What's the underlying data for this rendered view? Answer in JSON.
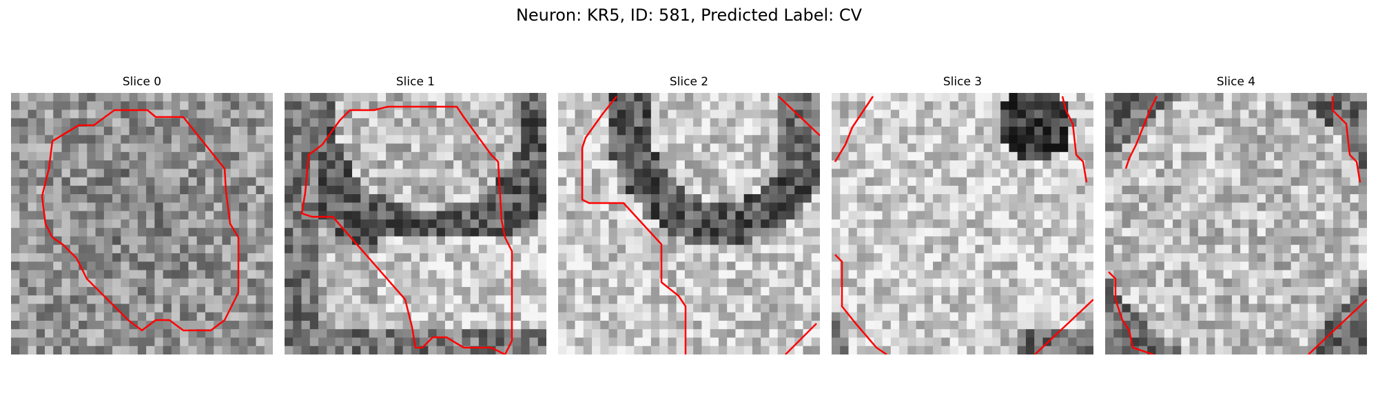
{
  "figure": {
    "title": "Neuron: KR5, ID: 581, Predicted Label: CV"
  },
  "slices": [
    {
      "title": "Slice 0"
    },
    {
      "title": "Slice 1"
    },
    {
      "title": "Slice 2"
    },
    {
      "title": "Slice 3"
    },
    {
      "title": "Slice 4"
    }
  ],
  "style": {
    "contour_color": "#ff0000",
    "image_colormap": "grayscale"
  }
}
